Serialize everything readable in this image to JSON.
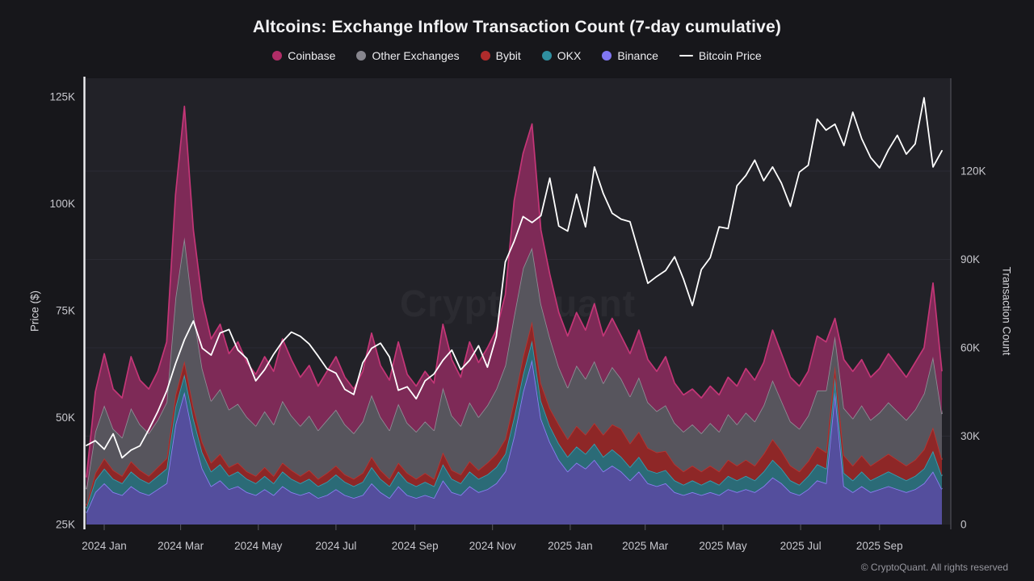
{
  "title": "Altcoins: Exchange Inflow Transaction Count (7-day cumulative)",
  "watermark": "CryptoQuant",
  "footer": "© CryptoQuant. All rights reserved",
  "colors": {
    "page_bg": "#17171b",
    "plot_bg": "#222228",
    "grid": "#2b2b33",
    "left_axis_line": "#f0f0f2",
    "right_axis_line": "#45454d",
    "tick_mark": "#5a5a62",
    "tick_text": "#c7c7cd",
    "watermark": "rgba(255,255,255,0.045)",
    "btc_line": "#ffffff"
  },
  "legend": [
    {
      "label": "Coinbase",
      "color": "#b12d67",
      "marker": "dot"
    },
    {
      "label": "Other Exchanges",
      "color": "#87868e",
      "marker": "dot"
    },
    {
      "label": "Bybit",
      "color": "#b02c2c",
      "marker": "dot"
    },
    {
      "label": "OKX",
      "color": "#2f8fa0",
      "marker": "dot"
    },
    {
      "label": "Binance",
      "color": "#8177f2",
      "marker": "dot"
    },
    {
      "label": "Bitcoin Price",
      "color": "#ffffff",
      "marker": "line"
    }
  ],
  "axes": {
    "left": {
      "label": "Price ($)",
      "ticks": [
        {
          "v": 25,
          "label": "25K"
        },
        {
          "v": 50,
          "label": "50K"
        },
        {
          "v": 75,
          "label": "75K"
        },
        {
          "v": 100,
          "label": "100K"
        },
        {
          "v": 125,
          "label": "125K"
        }
      ]
    },
    "right": {
      "label": "Transaction Count",
      "ticks": [
        {
          "v": 0,
          "label": "0"
        },
        {
          "v": 30,
          "label": "30K"
        },
        {
          "v": 60,
          "label": "60K"
        },
        {
          "v": 90,
          "label": "90K"
        },
        {
          "v": 120,
          "label": "120K"
        }
      ]
    },
    "x": {
      "ticks": [
        {
          "f": 0.0208,
          "label": "2024 Jan"
        },
        {
          "f": 0.1101,
          "label": "2024 Mar"
        },
        {
          "f": 0.2009,
          "label": "2024 May"
        },
        {
          "f": 0.2917,
          "label": "2024 Jul"
        },
        {
          "f": 0.384,
          "label": "2024 Sep"
        },
        {
          "f": 0.4747,
          "label": "2024 Nov"
        },
        {
          "f": 0.5655,
          "label": "2025 Jan"
        },
        {
          "f": 0.6532,
          "label": "2025 Mar"
        },
        {
          "f": 0.7441,
          "label": "2025 May"
        },
        {
          "f": 0.8348,
          "label": "2025 Jul"
        },
        {
          "f": 0.9271,
          "label": "2025 Sep"
        }
      ]
    }
  },
  "chart_data": {
    "type": "area",
    "stacked": true,
    "note": "weekly samples, Dec 2023 through Oct 2025; counts in thousands (right axis), price in thousands USD (left axis)",
    "count_axis": {
      "min": 0,
      "tick_step": 30,
      "unit": "K transactions"
    },
    "price_axis": {
      "min": 25,
      "tick_step": 25,
      "unit": "K USD"
    },
    "series": [
      {
        "name": "Binance",
        "fill": "#544e9d",
        "stroke": "#8b80f4",
        "values": [
          4,
          11,
          14,
          11,
          10,
          13,
          11,
          10,
          12,
          14,
          34,
          45,
          30,
          19,
          13,
          15,
          12,
          13,
          11,
          10,
          12,
          10,
          13,
          11,
          10,
          11,
          9,
          10,
          12,
          10,
          9,
          10,
          14,
          11,
          9,
          13,
          10,
          9,
          10,
          9,
          15,
          11,
          10,
          13,
          11,
          12,
          14,
          18,
          30,
          45,
          56,
          36,
          28,
          22,
          18,
          21,
          19,
          22,
          18,
          20,
          18,
          15,
          18,
          14,
          13,
          14,
          11,
          10,
          11,
          10,
          11,
          10,
          12,
          11,
          12,
          11,
          13,
          16,
          14,
          11,
          10,
          12,
          15,
          14,
          45,
          13,
          11,
          13,
          11,
          12,
          13,
          12,
          11,
          12,
          14,
          18,
          12
        ]
      },
      {
        "name": "OKX",
        "fill": "#2b6b77",
        "stroke": "#36a0b2",
        "values": [
          1.5,
          4,
          5,
          4.5,
          4,
          5,
          4.5,
          4,
          4.5,
          5,
          6,
          6,
          6,
          5.5,
          5,
          5.5,
          4.5,
          5,
          4.5,
          4,
          4.5,
          4,
          5,
          4.5,
          4,
          4.5,
          4,
          4.5,
          5,
          4.5,
          4,
          4.5,
          5.5,
          4.5,
          4,
          5,
          4.5,
          4,
          4.5,
          4,
          5.5,
          4.5,
          4,
          5,
          4.5,
          5,
          5.5,
          6,
          6.5,
          6,
          6.5,
          6,
          5.5,
          5.5,
          5,
          5.5,
          5,
          5.5,
          5,
          5.5,
          5,
          4.5,
          5,
          4.5,
          4.5,
          4.5,
          4,
          3.5,
          4,
          3.5,
          4,
          3.5,
          4.5,
          4,
          4.5,
          4,
          5,
          6,
          5,
          4,
          3.5,
          4.5,
          5.5,
          5,
          5,
          4.5,
          4,
          5,
          4,
          4.5,
          5,
          4.5,
          4,
          4.5,
          5,
          7,
          4.5
        ]
      },
      {
        "name": "Bybit",
        "fill": "#8e2727",
        "stroke": "#bb3430",
        "values": [
          1,
          2.5,
          3.5,
          3,
          2.5,
          3.5,
          3,
          2.5,
          3,
          3.5,
          4,
          4.5,
          4,
          3.5,
          3,
          3.5,
          3,
          3,
          2.5,
          2.5,
          3,
          2.5,
          3,
          3,
          2.5,
          3,
          2.5,
          3,
          3,
          2.5,
          2.5,
          3,
          3.5,
          3,
          2.5,
          3,
          3,
          2.5,
          3,
          2.5,
          4,
          3,
          3,
          3.5,
          3,
          4,
          4.5,
          5,
          5.5,
          6,
          6.5,
          6,
          6,
          6.5,
          6,
          7,
          6.5,
          7,
          7.5,
          8.5,
          9.5,
          8,
          8.5,
          7.5,
          7,
          6.5,
          5.5,
          4.5,
          5,
          4.5,
          5,
          4.5,
          5.5,
          5,
          5.5,
          5,
          6,
          7,
          6,
          5,
          4.5,
          5,
          6,
          5.5,
          4,
          6,
          5,
          5.5,
          5,
          5.5,
          6,
          5.5,
          5,
          5.5,
          6.5,
          8,
          5.5
        ]
      },
      {
        "name": "Other Exchanges",
        "fill": "#57555d",
        "stroke": "#908e97",
        "values": [
          5.5,
          14,
          18,
          14,
          13,
          18,
          15.5,
          14.5,
          16,
          19,
          33,
          42,
          32,
          25,
          21,
          22,
          19.5,
          20,
          18.5,
          17,
          19,
          17.5,
          21,
          18.5,
          17,
          18.5,
          16.5,
          18,
          19,
          17,
          15.5,
          17.5,
          21,
          18,
          16.5,
          20,
          17,
          16,
          17.5,
          16.5,
          22,
          18.5,
          16.5,
          20,
          18,
          19.5,
          22,
          25,
          29,
          30,
          25,
          27,
          24,
          19.5,
          17.5,
          20.5,
          19,
          21,
          17.5,
          19.5,
          17,
          16,
          18.5,
          15.5,
          14,
          15.5,
          14,
          13.5,
          14,
          13,
          14.5,
          13.5,
          15.5,
          14,
          16,
          15,
          16.5,
          20,
          17,
          15,
          14.5,
          15.5,
          19,
          21,
          10,
          16,
          16,
          17,
          15.5,
          16,
          17.5,
          16.5,
          15.5,
          17,
          19,
          24,
          15.5
        ]
      },
      {
        "name": "Coinbase",
        "fill": "#7e2a57",
        "stroke": "#c43677",
        "values": [
          4,
          13.5,
          17.5,
          13.5,
          13.5,
          17.5,
          15,
          15,
          16.5,
          20.5,
          35,
          44.5,
          28,
          23,
          21,
          22,
          19,
          21,
          18.5,
          17.5,
          18.5,
          18,
          21,
          19,
          16.5,
          17,
          15,
          16.5,
          18,
          16,
          15,
          17,
          21,
          17.5,
          17,
          21,
          16.5,
          15.5,
          17,
          16,
          21.5,
          19,
          16.5,
          20.5,
          18.5,
          19.5,
          20,
          24,
          39,
          39,
          42,
          25,
          21.5,
          18.5,
          17.5,
          18,
          16.5,
          19.5,
          16,
          16.5,
          14.5,
          14.5,
          16,
          14.5,
          13.5,
          16.5,
          13.5,
          12.5,
          12,
          12,
          12.5,
          12.5,
          12.5,
          13,
          15,
          14,
          14.5,
          17,
          16,
          15,
          14.5,
          15,
          18.5,
          16.5,
          6,
          16.5,
          16,
          15.5,
          14.5,
          15,
          16.5,
          15.5,
          14.5,
          16,
          15.5,
          25,
          14.5
        ]
      }
    ],
    "btc_price": {
      "name": "Bitcoin Price",
      "color": "#ffffff",
      "values": [
        43.5,
        44.6,
        42.6,
        46.2,
        40.6,
        42.4,
        43.4,
        47.2,
        51.4,
        56.2,
        62.6,
        68.2,
        72.6,
        66.2,
        64.6,
        69.8,
        70.6,
        65.8,
        63.8,
        58.6,
        61.2,
        64.8,
        67.8,
        70,
        69,
        67.2,
        64.4,
        61.4,
        60.4,
        56.6,
        55.4,
        62.8,
        66.2,
        67.4,
        64.2,
        56.4,
        57.2,
        54.4,
        58.6,
        60.2,
        63.4,
        65.8,
        61.2,
        63.4,
        66.8,
        61.8,
        69,
        86.4,
        91.2,
        97,
        95.6,
        97.2,
        106,
        94.8,
        93.6,
        102.2,
        94.6,
        108.6,
        102.4,
        97.8,
        96.4,
        95.8,
        88.6,
        81.4,
        83,
        84.4,
        87.6,
        82.4,
        76.2,
        84.6,
        87.4,
        94.6,
        94.2,
        104.2,
        106.6,
        110.2,
        105.4,
        108.6,
        104.8,
        99.4,
        107.4,
        109,
        119.8,
        117.2,
        118.6,
        113.6,
        121.4,
        115.2,
        110.8,
        108.4,
        112.6,
        116,
        111.6,
        114,
        124.8,
        108.6,
        112.4
      ]
    }
  }
}
